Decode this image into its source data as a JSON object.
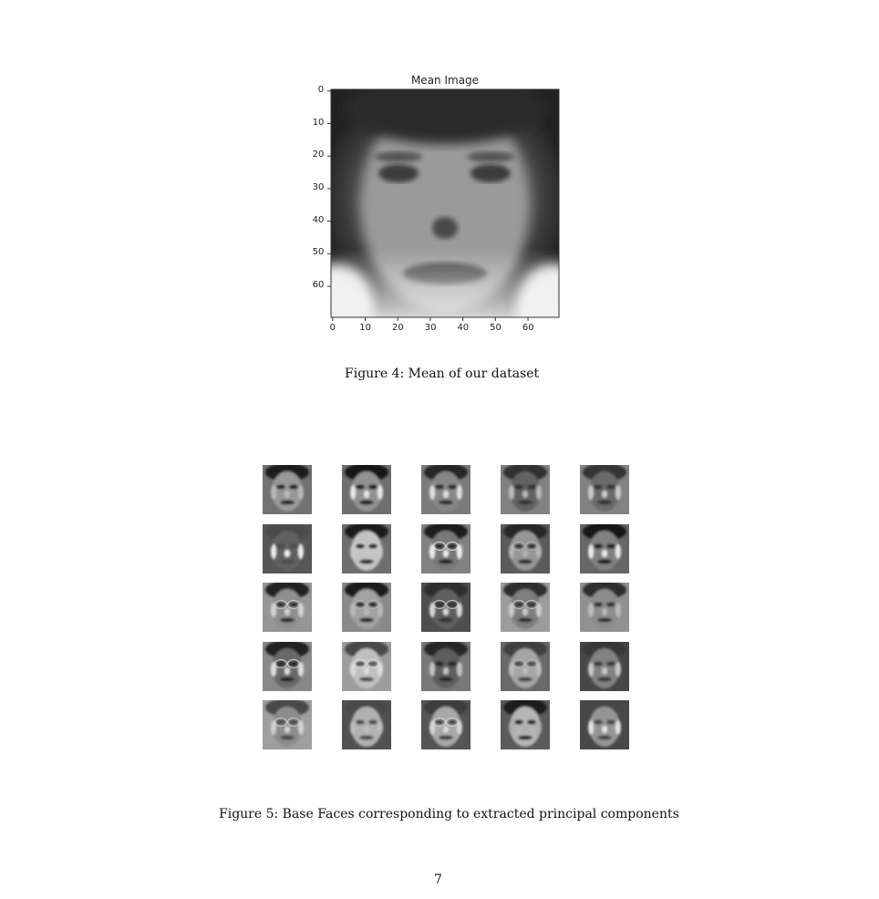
{
  "figure4": {
    "title": "Mean Image",
    "caption": "Figure 4: Mean of our dataset",
    "y_ticks": [
      "0",
      "10",
      "20",
      "30",
      "40",
      "50",
      "60"
    ],
    "x_ticks": [
      "0",
      "10",
      "20",
      "30",
      "40",
      "50",
      "60"
    ]
  },
  "figure5": {
    "caption": "Figure 5: Base Faces corresponding to extracted principal components",
    "grid": {
      "rows": 5,
      "cols": 5
    }
  },
  "page_number": "7"
}
